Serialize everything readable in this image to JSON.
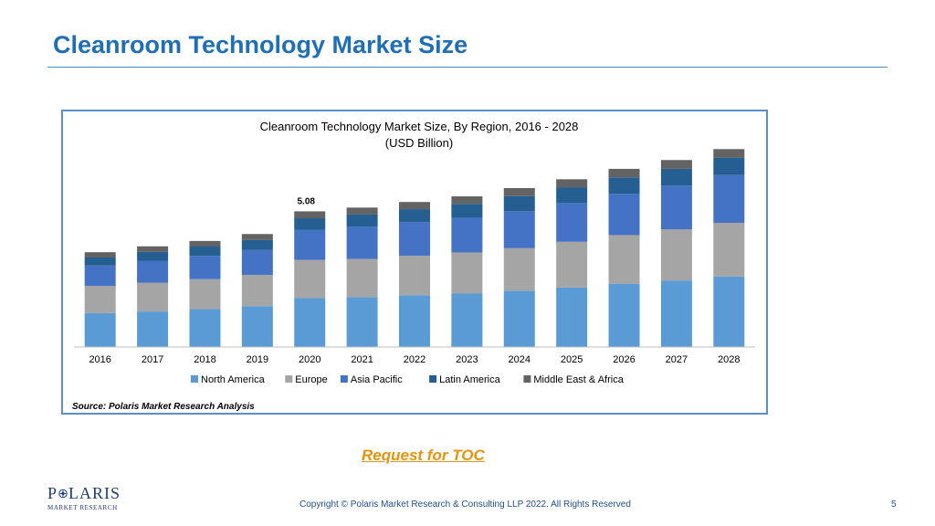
{
  "slide": {
    "title": "Cleanroom Technology Market Size",
    "toc_link": "Request for TOC",
    "copyright": "Copyright © Polaris Market Research & Consulting LLP 2022. All Rights Reserved",
    "page_number": "5",
    "logo": {
      "main_before": "P",
      "main_after": "LARIS",
      "sub": "MARKET RESEARCH"
    }
  },
  "chart_data": {
    "type": "bar",
    "stacked": true,
    "title": "Cleanroom Technology Market Size, By Region, 2016 - 2028",
    "subtitle": "(USD Billion)",
    "source": "Source: Polaris  Market Research Analysis",
    "categories": [
      "2016",
      "2017",
      "2018",
      "2019",
      "2020",
      "2021",
      "2022",
      "2023",
      "2024",
      "2025",
      "2026",
      "2027",
      "2028"
    ],
    "series": [
      {
        "name": "North America",
        "color": "#5b9bd5",
        "values": [
          1.27,
          1.33,
          1.42,
          1.53,
          1.84,
          1.87,
          1.94,
          2.0,
          2.11,
          2.23,
          2.37,
          2.49,
          2.64
        ]
      },
      {
        "name": "Europe",
        "color": "#a5a5a5",
        "values": [
          1.02,
          1.08,
          1.12,
          1.17,
          1.42,
          1.43,
          1.48,
          1.54,
          1.59,
          1.71,
          1.82,
          1.92,
          2.01
        ]
      },
      {
        "name": "Asia Pacific",
        "color": "#4472c4",
        "values": [
          0.76,
          0.82,
          0.87,
          0.93,
          1.12,
          1.2,
          1.26,
          1.3,
          1.39,
          1.46,
          1.55,
          1.63,
          1.79
        ]
      },
      {
        "name": "Latin America",
        "color": "#255e91",
        "values": [
          0.3,
          0.33,
          0.35,
          0.38,
          0.44,
          0.46,
          0.48,
          0.52,
          0.56,
          0.58,
          0.61,
          0.63,
          0.64
        ]
      },
      {
        "name": "Middle East & Africa",
        "color": "#636363",
        "values": [
          0.2,
          0.21,
          0.21,
          0.22,
          0.26,
          0.26,
          0.27,
          0.28,
          0.3,
          0.3,
          0.32,
          0.33,
          0.33
        ]
      }
    ],
    "annotations": [
      {
        "category": "2020",
        "text": "5.08"
      }
    ],
    "ylim": [
      0,
      8
    ],
    "y_axis_visible": false,
    "grid": false,
    "legend_position": "bottom"
  }
}
